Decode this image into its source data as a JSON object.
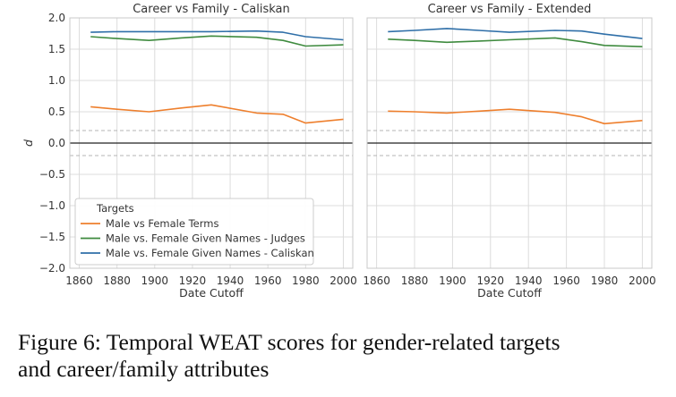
{
  "chart_data": [
    {
      "type": "line",
      "title": "Career vs Family - Caliskan",
      "xlabel": "Date Cutoff",
      "ylabel": "d",
      "xlim": [
        1855,
        2005
      ],
      "ylim": [
        -2.0,
        2.0
      ],
      "xticks": [
        "1860",
        "1880",
        "1900",
        "1920",
        "1940",
        "1960",
        "1980",
        "2000"
      ],
      "yticks": [
        "2.0",
        "1.5",
        "1.0",
        "0.5",
        "0.0",
        "−0.5",
        "−1.0",
        "−1.5",
        "−2.0"
      ],
      "grid": true,
      "zero_line": 0.0,
      "dashed_lines": [
        0.2,
        -0.2
      ],
      "legend_position": "lower-left",
      "series": [
        {
          "name": "Male vs Female Terms",
          "color": "#ee7f2d",
          "x": [
            1866,
            1880,
            1897,
            1914,
            1930,
            1954,
            1968,
            1980,
            2000
          ],
          "y": [
            0.58,
            0.54,
            0.5,
            0.56,
            0.61,
            0.48,
            0.46,
            0.32,
            0.38
          ]
        },
        {
          "name": "Male vs. Female Given Names - Judges",
          "color": "#3f8b3f",
          "x": [
            1866,
            1880,
            1897,
            1914,
            1930,
            1954,
            1968,
            1980,
            2000
          ],
          "y": [
            1.7,
            1.67,
            1.64,
            1.68,
            1.71,
            1.69,
            1.64,
            1.55,
            1.57
          ]
        },
        {
          "name": "Male vs. Female Given Names - Caliskan",
          "color": "#2f6fa8",
          "x": [
            1866,
            1880,
            1897,
            1914,
            1930,
            1954,
            1968,
            1980,
            2000
          ],
          "y": [
            1.77,
            1.78,
            1.78,
            1.78,
            1.78,
            1.79,
            1.77,
            1.7,
            1.65
          ]
        }
      ]
    },
    {
      "type": "line",
      "title": "Career vs Family - Extended",
      "xlabel": "Date Cutoff",
      "xlim": [
        1855,
        2005
      ],
      "ylim": [
        -2.0,
        2.0
      ],
      "xticks": [
        "1860",
        "1880",
        "1900",
        "1920",
        "1940",
        "1960",
        "1980",
        "2000"
      ],
      "grid": true,
      "zero_line": 0.0,
      "dashed_lines": [
        0.2,
        -0.2
      ],
      "series": [
        {
          "name": "Male vs Female Terms",
          "color": "#ee7f2d",
          "x": [
            1866,
            1880,
            1897,
            1914,
            1930,
            1954,
            1968,
            1980,
            2000
          ],
          "y": [
            0.51,
            0.5,
            0.48,
            0.51,
            0.54,
            0.49,
            0.42,
            0.31,
            0.36
          ]
        },
        {
          "name": "Male vs. Female Given Names - Judges",
          "color": "#3f8b3f",
          "x": [
            1866,
            1880,
            1897,
            1914,
            1930,
            1954,
            1968,
            1980,
            2000
          ],
          "y": [
            1.66,
            1.64,
            1.61,
            1.63,
            1.65,
            1.68,
            1.62,
            1.56,
            1.54
          ]
        },
        {
          "name": "Male vs. Female Given Names - Caliskan",
          "color": "#2f6fa8",
          "x": [
            1866,
            1880,
            1897,
            1914,
            1930,
            1954,
            1968,
            1980,
            2000
          ],
          "y": [
            1.78,
            1.8,
            1.83,
            1.8,
            1.77,
            1.8,
            1.79,
            1.74,
            1.67
          ]
        }
      ]
    }
  ],
  "legend": {
    "title": "Targets",
    "entries": [
      {
        "label": "Male vs Female Terms",
        "color": "#ee7f2d"
      },
      {
        "label": "Male vs. Female Given Names - Judges",
        "color": "#3f8b3f"
      },
      {
        "label": "Male vs. Female Given Names - Caliskan",
        "color": "#2f6fa8"
      }
    ]
  },
  "caption": {
    "line1": "Figure 6: Temporal WEAT scores for gender-related targets",
    "line2": "and career/family attributes"
  }
}
